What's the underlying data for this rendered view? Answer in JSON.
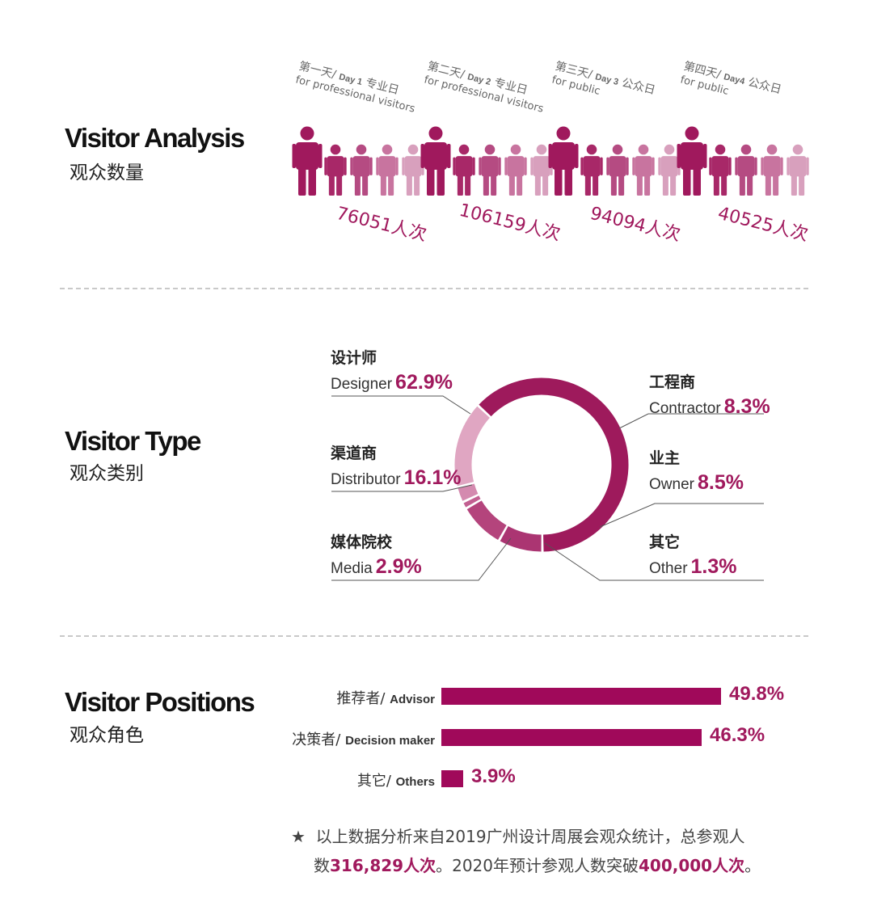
{
  "sections": {
    "analysis": {
      "title": "Visitor Analysis",
      "subtitle": "观众数量"
    },
    "type": {
      "title": "Visitor Type",
      "subtitle": "观众类别"
    },
    "positions": {
      "title": "Visitor Positions",
      "subtitle": "观众角色"
    }
  },
  "colors": {
    "accent": "#a0195d",
    "person_shades": [
      "#a0195d",
      "#a82868",
      "#b54b82",
      "#c8749f",
      "#d8a0bd"
    ],
    "donut": [
      "#9e1a5c",
      "#ab3572",
      "#b4447c",
      "#c25f91",
      "#d48aaf",
      "#e0a6c2"
    ]
  },
  "days": [
    {
      "cn": "第一天/",
      "en": "Day 1",
      "kind": "专业日",
      "sub": "for professional visitors",
      "count": "76051人次"
    },
    {
      "cn": "第二天/",
      "en": "Day 2",
      "kind": "专业日",
      "sub": "for professional visitors",
      "count": "106159人次"
    },
    {
      "cn": "第三天/",
      "en": "Day 3",
      "kind": "公众日",
      "sub": "for public",
      "count": "94094人次"
    },
    {
      "cn": "第四天/",
      "en": "Day4",
      "kind": "公众日",
      "sub": "for public",
      "count": "40525人次"
    }
  ],
  "types": {
    "designer": {
      "cn": "设计师",
      "en": "Designer",
      "pct": "62.9%"
    },
    "distributor": {
      "cn": "渠道商",
      "en": "Distributor",
      "pct": "16.1%"
    },
    "media": {
      "cn": "媒体院校",
      "en": "Media",
      "pct": "2.9%"
    },
    "contractor": {
      "cn": "工程商",
      "en": "Contractor",
      "pct": "8.3%"
    },
    "owner": {
      "cn": "业主",
      "en": "Owner",
      "pct": "8.5%"
    },
    "other": {
      "cn": "其它",
      "en": "Other",
      "pct": "1.3%"
    }
  },
  "positions": [
    {
      "cn": "推荐者/",
      "en": "Advisor",
      "pct": "49.8%"
    },
    {
      "cn": "决策者/",
      "en": "Decision maker",
      "pct": "46.3%"
    },
    {
      "cn": "其它/",
      "en": "Others",
      "pct": "3.9%"
    }
  ],
  "note": {
    "star": "★",
    "line1": "以上数据分析来自2019广州设计周展会观众统计，总参观人",
    "line2a": "数",
    "line2b": "316,829人次",
    "line2c": "。2020年预计参观人数突破",
    "line2d": "400,000人次",
    "line2e": "。"
  },
  "chart_data": [
    {
      "type": "bar",
      "categories": [
        "第一天/ Day 1 专业日",
        "第二天/ Day 2 专业日",
        "第三天/ Day 3 公众日",
        "第四天/ Day4 公众日"
      ],
      "values": [
        76051,
        106159,
        94094,
        40525
      ],
      "title": "Visitor Analysis"
    },
    {
      "type": "pie",
      "title": "Visitor Type",
      "categories": [
        "Designer",
        "Contractor",
        "Owner",
        "Other",
        "Media",
        "Distributor"
      ],
      "values": [
        62.9,
        8.3,
        8.5,
        1.3,
        2.9,
        16.1
      ]
    },
    {
      "type": "bar",
      "title": "Visitor Positions",
      "categories": [
        "Advisor",
        "Decision maker",
        "Others"
      ],
      "values": [
        49.8,
        46.3,
        3.9
      ],
      "xlim": [
        0,
        49.8
      ]
    }
  ]
}
